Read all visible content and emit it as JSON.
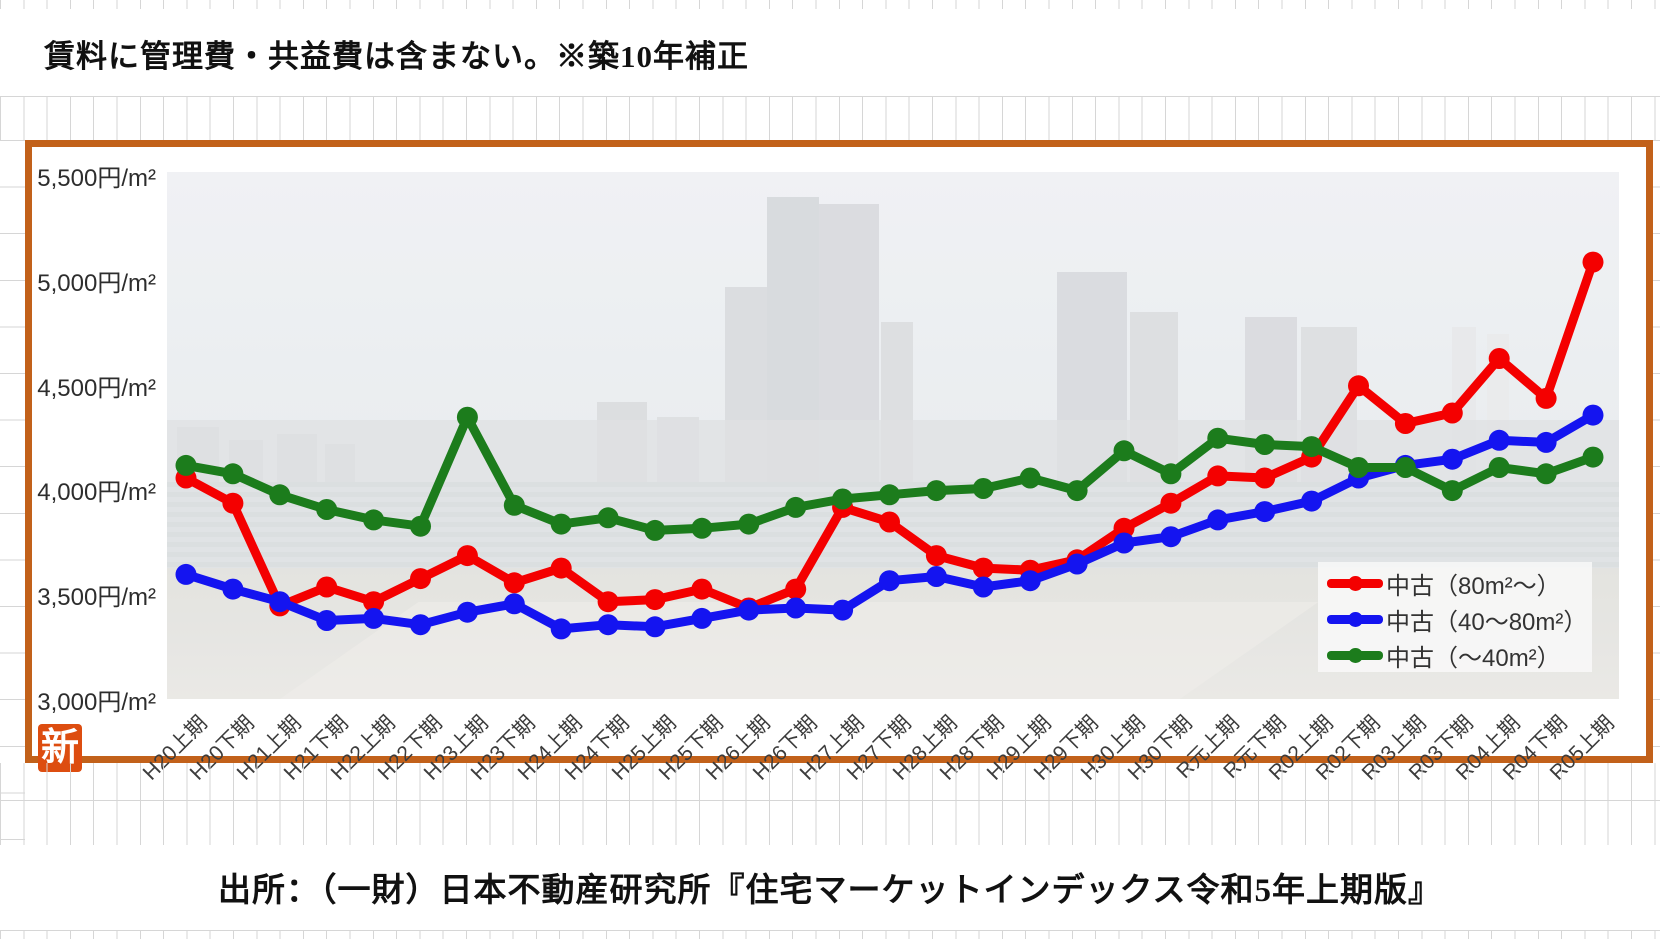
{
  "note": "賃料に管理費・共益費は含まない。※築10年補正",
  "source": "出所：（一財）日本不動産研究所『住宅マーケットインデックス令和5年上期版』",
  "stamp": "新",
  "chart_data": {
    "type": "line",
    "title": "",
    "unit": "円/m²",
    "ylim": [
      3000,
      5500
    ],
    "grid": false,
    "legend_position": "inside-bottom-right",
    "yticks": [
      {
        "label": "5,500円/m²",
        "value": 5500
      },
      {
        "label": "5,000円/m²",
        "value": 5000
      },
      {
        "label": "4,500円/m²",
        "value": 4500
      },
      {
        "label": "4,000円/m²",
        "value": 4000
      },
      {
        "label": "3,500円/m²",
        "value": 3500
      },
      {
        "label": "3,000円/m²",
        "value": 3000
      }
    ],
    "categories": [
      "H20上期",
      "H20下期",
      "H21上期",
      "H21下期",
      "H22上期",
      "H22下期",
      "H23上期",
      "H23下期",
      "H24上期",
      "H24下期",
      "H25上期",
      "H25下期",
      "H26上期",
      "H26下期",
      "H27上期",
      "H27下期",
      "H28上期",
      "H28下期",
      "H29上期",
      "H29下期",
      "H30上期",
      "H30下期",
      "R元上期",
      "R元下期",
      "R02上期",
      "R02下期",
      "R03上期",
      "R03下期",
      "R04上期",
      "R04下期",
      "R05上期"
    ],
    "series": [
      {
        "name": "中古（80m²～）",
        "color": "#f40000",
        "values": [
          4040,
          3920,
          3430,
          3520,
          3450,
          3560,
          3670,
          3540,
          3610,
          3450,
          3460,
          3510,
          3420,
          3510,
          3900,
          3830,
          3670,
          3610,
          3600,
          3650,
          3800,
          3920,
          4050,
          4040,
          4140,
          4480,
          4300,
          4350,
          4610,
          4420,
          5070
        ]
      },
      {
        "name": "中古（40～80m²）",
        "color": "#1414f0",
        "values": [
          3580,
          3510,
          3450,
          3360,
          3370,
          3340,
          3400,
          3440,
          3320,
          3340,
          3330,
          3370,
          3410,
          3420,
          3410,
          3550,
          3570,
          3520,
          3550,
          3630,
          3730,
          3760,
          3840,
          3880,
          3930,
          4040,
          4100,
          4130,
          4220,
          4210,
          4340
        ]
      },
      {
        "name": "中古（～40m²）",
        "color": "#1c7c1c",
        "values": [
          4100,
          4060,
          3960,
          3890,
          3840,
          3810,
          4330,
          3910,
          3820,
          3850,
          3790,
          3800,
          3820,
          3900,
          3940,
          3960,
          3980,
          3990,
          4040,
          3980,
          4170,
          4060,
          4230,
          4200,
          4190,
          4090,
          4090,
          3980,
          4090,
          4060,
          4140
        ]
      }
    ]
  }
}
